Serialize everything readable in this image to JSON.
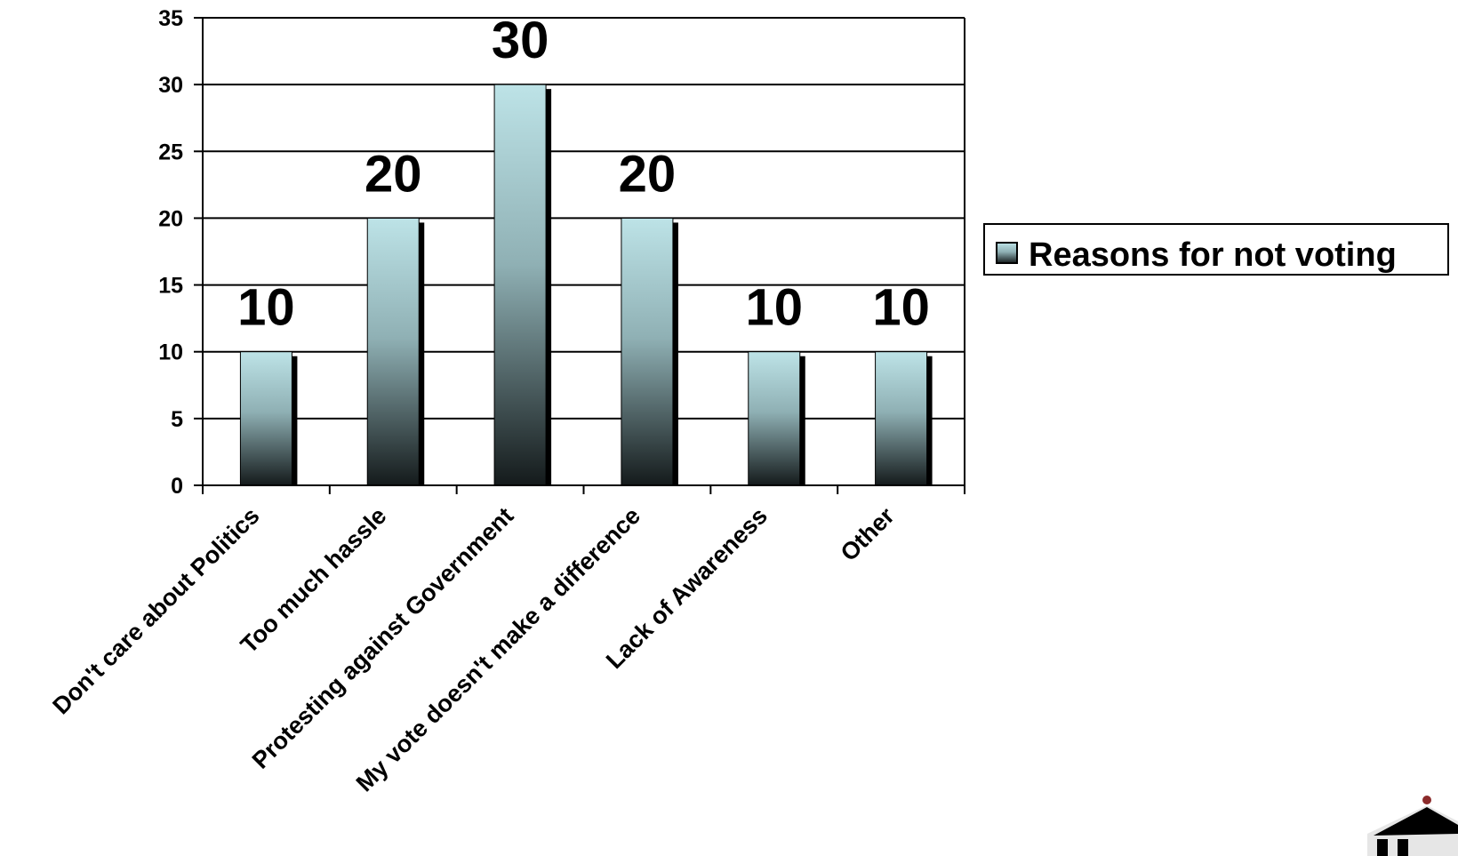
{
  "chart_data": {
    "type": "bar",
    "categories": [
      "Don't care about Politics",
      "Too much hassle",
      "Protesting against Government",
      "My vote doesn't make a difference",
      "Lack of Awareness",
      "Other"
    ],
    "series": [
      {
        "name": "Reasons for not voting",
        "values": [
          10,
          20,
          30,
          20,
          10,
          10
        ]
      }
    ],
    "ylim": [
      0,
      35
    ],
    "yticks": [
      0,
      5,
      10,
      15,
      20,
      25,
      30,
      35
    ],
    "grid": true,
    "data_labels": true,
    "legend_position": "right",
    "colors": {
      "bar_top": "#bde3e7",
      "bar_bottom": "#141a1b",
      "shadow": "#000000",
      "grid": "#000000"
    }
  }
}
